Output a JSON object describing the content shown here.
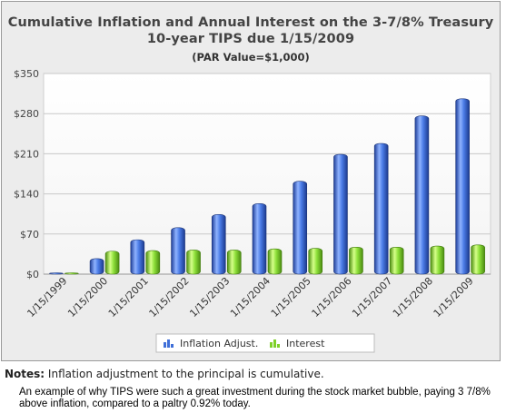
{
  "chart_data": {
    "type": "bar",
    "title_line1": "Cumulative Inflation and Annual Interest on the 3-7/8% Treasury",
    "title_line2": "10-year TIPS due 1/15/2009",
    "subtitle": "(PAR Value=$1,000)",
    "categories": [
      "1/15/1999",
      "1/15/2000",
      "1/15/2001",
      "1/15/2002",
      "1/15/2003",
      "1/15/2004",
      "1/15/2005",
      "1/15/2006",
      "1/15/2007",
      "1/15/2008",
      "1/15/2009"
    ],
    "series": [
      {
        "name": "Inflation Adjust.",
        "color": "#3f6fd8",
        "values": [
          0,
          27,
          60,
          81,
          104,
          123,
          162,
          209,
          228,
          276,
          306
        ]
      },
      {
        "name": "Interest",
        "color": "#7fd02a",
        "values": [
          0,
          40,
          41,
          42,
          42,
          44,
          45,
          47,
          47,
          49,
          51
        ]
      }
    ],
    "y_ticks": [
      "$0",
      "$70",
      "$140",
      "$210",
      "$280",
      "$350"
    ],
    "ylim": [
      0,
      350
    ],
    "grid": true,
    "legend_position": "bottom"
  },
  "notes": {
    "label": "Notes:",
    "text": " Inflation adjustment to the principal is cumulative."
  },
  "caption": "An example of why TIPS were such a great investment during the stock market bubble, paying 3 7/8% above inflation, compared to a paltry 0.92% today."
}
